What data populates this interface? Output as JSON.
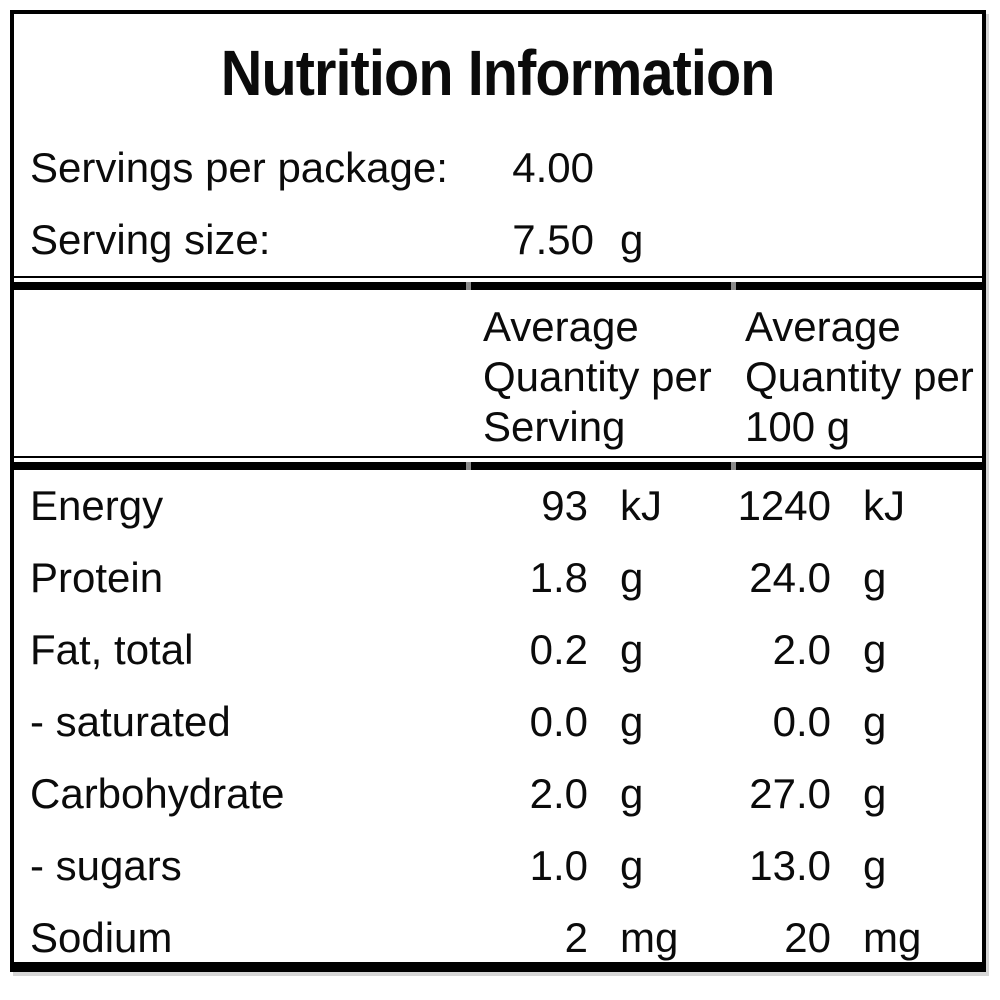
{
  "title": "Nutrition Information",
  "serving_info": [
    {
      "label": "Servings per package:",
      "value": "4.00",
      "unit": ""
    },
    {
      "label": "Serving size:",
      "value": "7.50",
      "unit": "g"
    }
  ],
  "table": {
    "header_blank": "",
    "header_per_serving": "Average Quantity per Serving",
    "header_per_100g": "Average Quantity per 100 g",
    "rows": [
      {
        "nutrient": "Energy",
        "per_serving": "93",
        "per_serving_unit": "kJ",
        "per_100g": "1240",
        "per_100g_unit": "kJ"
      },
      {
        "nutrient": "Protein",
        "per_serving": "1.8",
        "per_serving_unit": "g",
        "per_100g": "24.0",
        "per_100g_unit": "g"
      },
      {
        "nutrient": "Fat, total",
        "per_serving": "0.2",
        "per_serving_unit": "g",
        "per_100g": "2.0",
        "per_100g_unit": "g"
      },
      {
        "nutrient": "- saturated",
        "per_serving": "0.0",
        "per_serving_unit": "g",
        "per_100g": "0.0",
        "per_100g_unit": "g"
      },
      {
        "nutrient": "Carbohydrate",
        "per_serving": "2.0",
        "per_serving_unit": "g",
        "per_100g": "27.0",
        "per_100g_unit": "g"
      },
      {
        "nutrient": "- sugars",
        "per_serving": "1.0",
        "per_serving_unit": "g",
        "per_100g": "13.0",
        "per_100g_unit": "g"
      },
      {
        "nutrient": "Sodium",
        "per_serving": "2",
        "per_serving_unit": "mg",
        "per_100g": "20",
        "per_100g_unit": "mg"
      }
    ]
  },
  "colors": {
    "text": "#0b0b0b",
    "border": "#000000",
    "background": "#ffffff"
  }
}
